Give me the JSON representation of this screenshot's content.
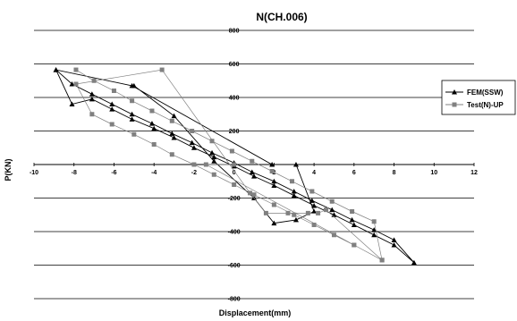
{
  "chart_data": {
    "type": "scatter",
    "title": "N(CH.006)",
    "xlabel": "Displacement(mm)",
    "ylabel": "P(KN)",
    "xlim": [
      -10,
      12
    ],
    "ylim": [
      -800,
      800
    ],
    "xticks": [
      -10,
      -8,
      -6,
      -4,
      -2,
      0,
      2,
      4,
      6,
      8,
      10,
      12
    ],
    "yticks": [
      800,
      600,
      400,
      200,
      0,
      -200,
      -400,
      -600,
      -800
    ],
    "grid": "horizontal",
    "legend_position": "right",
    "series": [
      {
        "name": "FEM(SSW)",
        "marker": "triangle",
        "color": "#000000",
        "x": [
          -8.9,
          -8.1,
          -7.1,
          -6.1,
          -5.1,
          -4.1,
          -3.1,
          -2.1,
          -1.1,
          0.0,
          0.9,
          2.0,
          3.0,
          3.9,
          4.9,
          5.9,
          7.0,
          8.0,
          9.0,
          8.0,
          7.0,
          6.0,
          5.0,
          4.0,
          3.0,
          2.0,
          1.0,
          0.0,
          -1.0,
          -2.0,
          -3.0,
          -4.0,
          -5.1,
          -6.1,
          -7.1,
          -8.1,
          -8.9,
          -5.1,
          1.9,
          3.1,
          4.0,
          3.1,
          2.0,
          1.0,
          -1.0,
          -3.0,
          -5.0
        ],
        "y": [
          565,
          480,
          420,
          360,
          300,
          245,
          185,
          130,
          70,
          10,
          -45,
          -100,
          -160,
          -215,
          -270,
          -330,
          -390,
          -450,
          -585,
          -480,
          -420,
          -360,
          -300,
          -245,
          -185,
          -125,
          -70,
          -10,
          45,
          100,
          160,
          215,
          270,
          330,
          390,
          360,
          565,
          470,
          0,
          0,
          -280,
          -330,
          -350,
          -200,
          20,
          290,
          470
        ]
      },
      {
        "name": "Test(N)-UP",
        "marker": "square",
        "color": "#808080",
        "x": [
          -7.9,
          -7.0,
          -6.0,
          -5.1,
          -4.1,
          -3.1,
          -2.1,
          -1.1,
          -0.1,
          0.9,
          1.9,
          2.9,
          3.9,
          4.9,
          5.9,
          7.0,
          7.4,
          6.0,
          5.0,
          4.0,
          3.0,
          2.0,
          1.0,
          0.0,
          -1.0,
          -2.0,
          -3.1,
          -4.0,
          -5.0,
          -6.1,
          -7.1,
          -7.9,
          -3.6,
          0.8,
          1.6,
          2.7,
          3.7,
          4.2,
          4.6,
          7.4,
          6.0,
          -1.4,
          0.0
        ],
        "y": [
          565,
          500,
          440,
          380,
          320,
          260,
          200,
          140,
          80,
          20,
          -40,
          -100,
          -160,
          -220,
          -280,
          -340,
          -570,
          -480,
          -420,
          -360,
          -300,
          -240,
          -180,
          -120,
          -60,
          0,
          60,
          120,
          180,
          240,
          300,
          480,
          565,
          -170,
          -290,
          -290,
          -290,
          -290,
          -270,
          -570,
          -480,
          0,
          0
        ]
      }
    ]
  }
}
